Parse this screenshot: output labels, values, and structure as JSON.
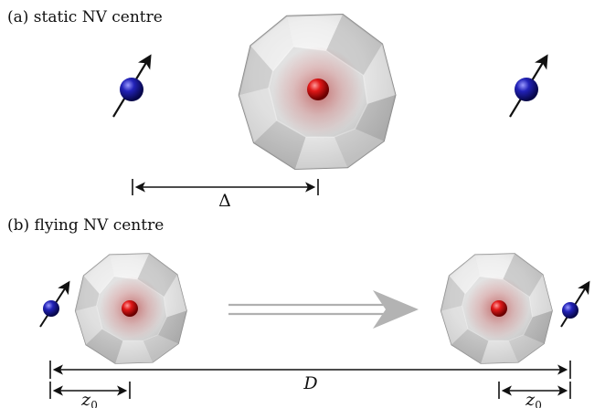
{
  "panels": {
    "a": {
      "label": "(a) static NV centre",
      "distance_label": "Δ"
    },
    "b": {
      "label": "(b) flying NV centre",
      "distance_label": "D",
      "offset_label_left": "z",
      "offset_label_left_sub": "0",
      "offset_label_right": "z",
      "offset_label_right_sub": "0"
    }
  },
  "colors": {
    "nv_centre": "#d81818",
    "spin": "#1a1aa8",
    "arrow": "#111111",
    "diamond": "#d6d6d6",
    "flight_arrow": "#b0b0b0"
  }
}
